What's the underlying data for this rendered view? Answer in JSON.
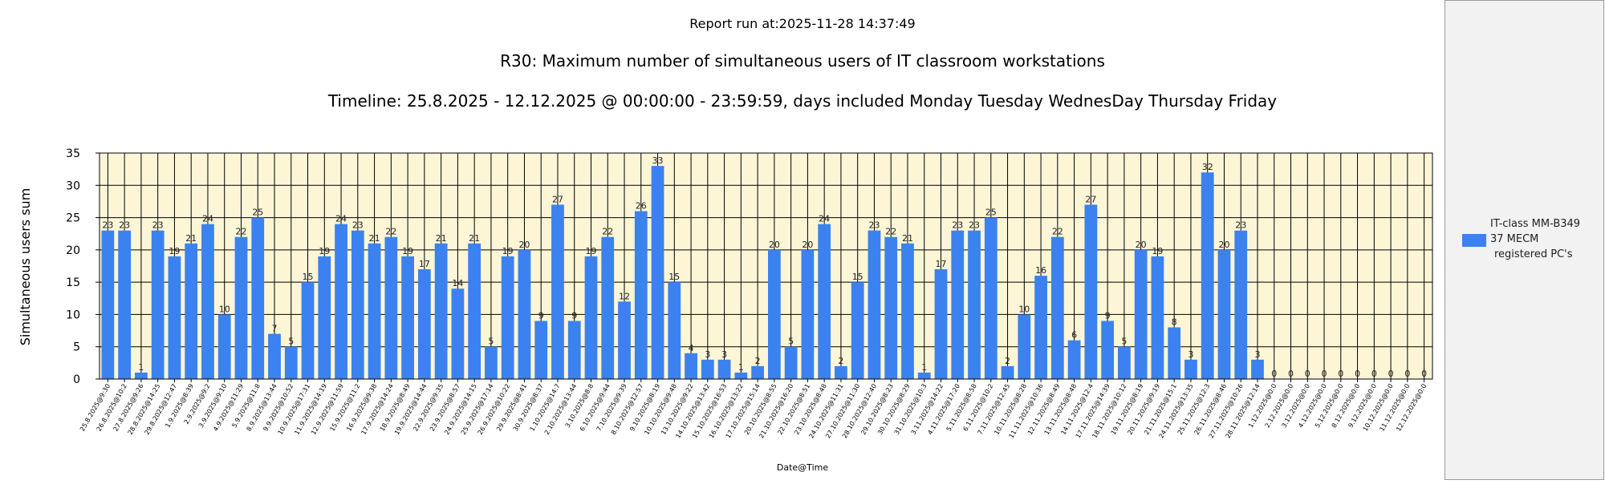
{
  "header": {
    "report_run": "Report run at:2025-11-28 14:37:49",
    "title": "R30: Maximum number of simultaneous users of IT classroom workstations",
    "timeline": "Timeline: 25.8.2025  - 12.12.2025  @  00:00:00 -  23:59:59, days included Monday Tuesday WednesDay Thursday Friday"
  },
  "legend": {
    "line1": "IT-class MM-B349",
    "line2": "37 MECM",
    "line3": "registered PC's"
  },
  "colors": {
    "bar": "#3b82f0",
    "plot_bg": "#fdf6d6",
    "grid": "#000000"
  },
  "chart_data": {
    "type": "bar",
    "xlabel": "Date@Time",
    "ylabel": "Simultaneous users sum",
    "ylim": [
      0,
      35
    ],
    "yticks": [
      0,
      5,
      10,
      15,
      20,
      25,
      30,
      35
    ],
    "grid": true,
    "legend_position": "right",
    "series": [
      {
        "name": "IT-class MM-B349 37 MECM registered PC's"
      }
    ],
    "categories": [
      "25.8.2025@9:30",
      "26.8.2025@10:2",
      "27.8.2025@9:26",
      "28.8.2025@14:25",
      "29.8.2025@12:47",
      "1.9.2025@8:39",
      "2.9.2025@9:2",
      "3.9.2025@9:10",
      "4.9.2025@11:29",
      "5.9.2025@11:8",
      "8.9.2025@13:44",
      "9.9.2025@10:52",
      "10.9.2025@17:31",
      "11.9.2025@14:19",
      "12.9.2025@11:59",
      "15.9.2025@11:2",
      "16.9.2025@9:38",
      "17.9.2025@14:24",
      "18.9.2025@8:49",
      "19.9.2025@14:44",
      "22.9.2025@9:35",
      "23.9.2025@8:57",
      "24.9.2025@14:15",
      "25.9.2025@17:14",
      "26.9.2025@10:22",
      "29.9.2025@8:41",
      "30.9.2025@8:37",
      "1.10.2025@14:7",
      "2.10.2025@13:44",
      "3.10.2025@8:8",
      "6.10.2025@9:44",
      "7.10.2025@9:39",
      "8.10.2025@12:57",
      "9.10.2025@8:19",
      "10.10.2025@9:48",
      "13.10.2025@9:22",
      "14.10.2025@13:42",
      "15.10.2025@16:53",
      "16.10.2025@13:22",
      "17.10.2025@15:14",
      "20.10.2025@8:55",
      "21.10.2025@16:20",
      "22.10.2025@8:51",
      "23.10.2025@8:48",
      "24.10.2025@11:31",
      "27.10.2025@11:30",
      "28.10.2025@12:40",
      "29.10.2025@8:23",
      "30.10.2025@8:29",
      "31.10.2025@10:3",
      "3.11.2025@14:22",
      "4.11.2025@17:20",
      "5.11.2025@8:58",
      "6.11.2025@10:2",
      "7.11.2025@12:45",
      "10.11.2025@8:28",
      "11.11.2025@10:36",
      "12.11.2025@8:49",
      "13.11.2025@8:48",
      "14.11.2025@12:4",
      "17.11.2025@14:39",
      "18.11.2025@10:12",
      "19.11.2025@8:19",
      "20.11.2025@9:19",
      "21.11.2025@15:1",
      "24.11.2025@13:35",
      "25.11.2025@12:3",
      "26.11.2025@8:46",
      "27.11.2025@10:26",
      "28.11.2025@12:14",
      "1.12.2025@0:0",
      "2.12.2025@0:0",
      "3.12.2025@0:0",
      "4.12.2025@0:0",
      "5.12.2025@0:0",
      "8.12.2025@0:0",
      "9.12.2025@0:0",
      "10.12.2025@0:0",
      "11.12.2025@0:0",
      "12.12.2025@0:0"
    ],
    "values": [
      23,
      23,
      1,
      23,
      19,
      21,
      24,
      10,
      22,
      25,
      7,
      5,
      15,
      19,
      24,
      23,
      21,
      22,
      19,
      17,
      21,
      14,
      21,
      5,
      19,
      20,
      9,
      27,
      9,
      19,
      22,
      12,
      26,
      33,
      15,
      4,
      3,
      3,
      1,
      2,
      20,
      5,
      20,
      24,
      2,
      15,
      23,
      22,
      21,
      1,
      17,
      23,
      23,
      25,
      2,
      10,
      16,
      22,
      6,
      27,
      9,
      5,
      20,
      19,
      8,
      3,
      32,
      20,
      23,
      3,
      0,
      0,
      0,
      0,
      0,
      0,
      0,
      0,
      0,
      0
    ]
  }
}
